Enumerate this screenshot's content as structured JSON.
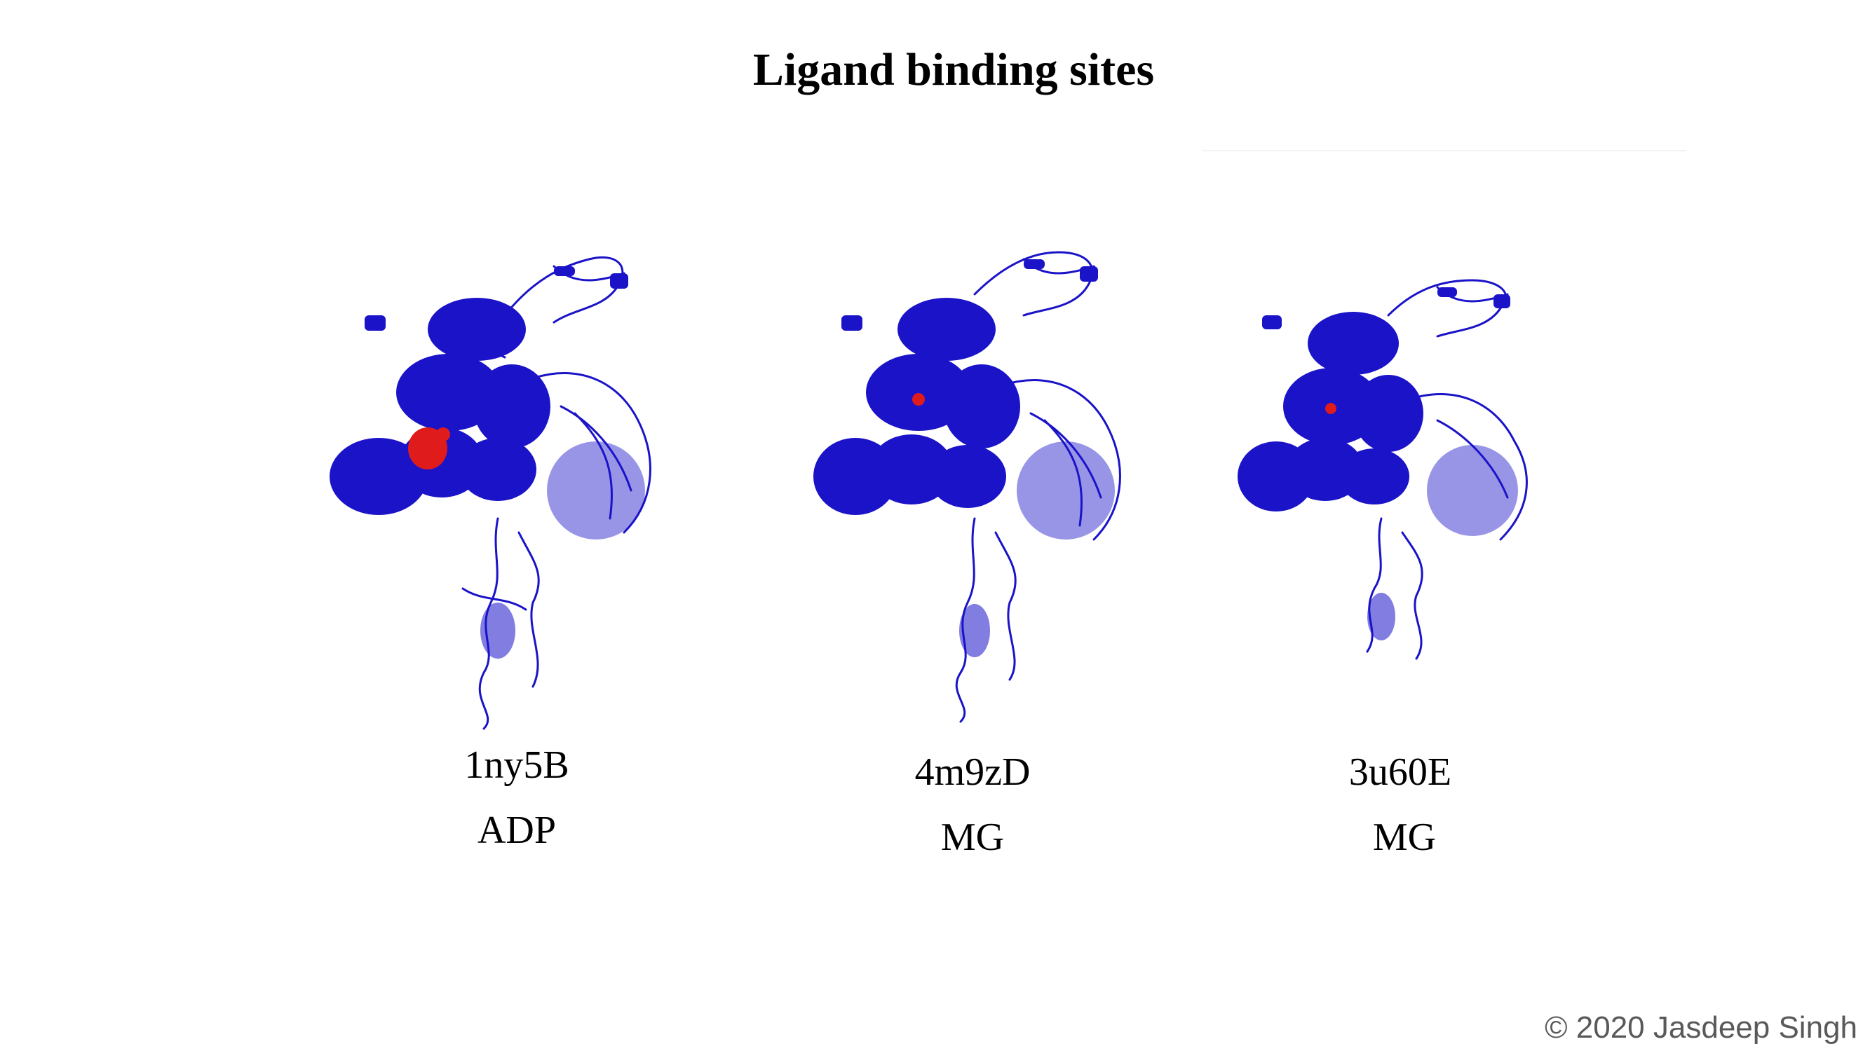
{
  "title": "Ligand binding sites",
  "panels": [
    {
      "pdb_id": "1ny5B",
      "ligand": "ADP"
    },
    {
      "pdb_id": "4m9zD",
      "ligand": "MG"
    },
    {
      "pdb_id": "3u60E",
      "ligand": "MG"
    }
  ],
  "footer": "© 2020 Jasdeep Singh",
  "colors": {
    "protein": "#1a13c8",
    "ligand": "#e01b1b"
  }
}
